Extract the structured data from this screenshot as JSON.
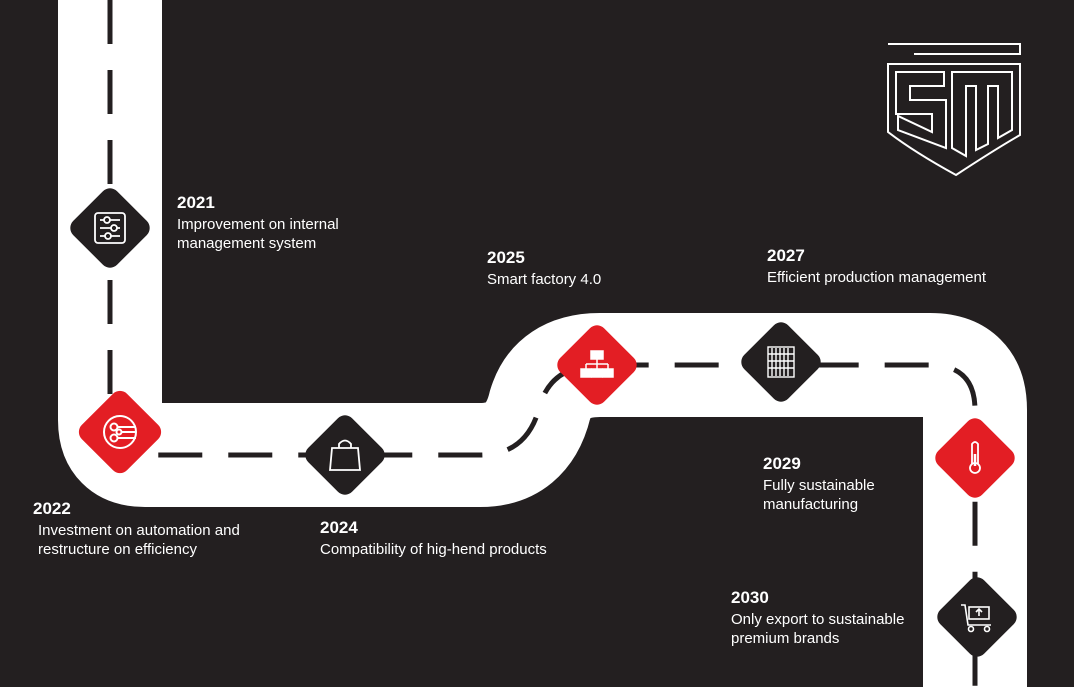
{
  "colors": {
    "background": "#231f20",
    "road": "#ffffff",
    "red": "#e31e24",
    "black": "#231f20"
  },
  "logo": {
    "name": "SM monogram logo"
  },
  "milestones": [
    {
      "year": "2021",
      "text": "Improvement on internal management system",
      "line1": "Improvement on internal",
      "line2": "management system",
      "icon": "sliders-icon",
      "color": "black"
    },
    {
      "year": "2022",
      "text": "Investment on automation and restructure on efficiency",
      "line1": "Investment on automation and",
      "line2": "restructure on efficiency",
      "icon": "network-circle-icon",
      "color": "red"
    },
    {
      "year": "2024",
      "text": "Compatibility of hig-hend products",
      "line1": "Compatibility of hig-hend products",
      "line2": "",
      "icon": "shopping-bag-icon",
      "color": "black"
    },
    {
      "year": "2025",
      "text": "Smart factory 4.0",
      "line1": "Smart factory 4.0",
      "line2": "",
      "icon": "org-chart-icon",
      "color": "red"
    },
    {
      "year": "2027",
      "text": "Efficient production management",
      "line1": "Efficient production management",
      "line2": "",
      "icon": "server-rack-icon",
      "color": "black"
    },
    {
      "year": "2029",
      "text": "Fully sustainable manufacturing",
      "line1": "Fully sustainable",
      "line2": "manufacturing",
      "icon": "thermometer-icon",
      "color": "red"
    },
    {
      "year": "2030",
      "text": "Only export to sustainable premium brands",
      "line1": "Only export to sustainable",
      "line2": "premium brands",
      "icon": "cart-upload-icon",
      "color": "black"
    }
  ]
}
